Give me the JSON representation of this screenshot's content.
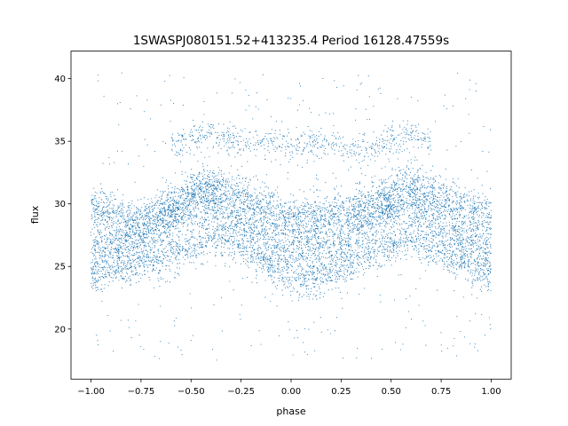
{
  "chart_data": {
    "type": "scatter",
    "title": "1SWASPJ080151.52+413235.4 Period 16128.47559s",
    "xlabel": "phase",
    "ylabel": "flux",
    "xlim": [
      -1.1,
      1.1
    ],
    "ylim": [
      16.0,
      42.2
    ],
    "xticks": [
      -1.0,
      -0.75,
      -0.5,
      -0.25,
      0.0,
      0.25,
      0.5,
      0.75,
      1.0
    ],
    "xtick_labels": [
      "−1.00",
      "−0.75",
      "−0.50",
      "−0.25",
      "0.00",
      "0.25",
      "0.50",
      "0.75",
      "1.00"
    ],
    "yticks": [
      20,
      25,
      30,
      35,
      40
    ],
    "ytick_labels": [
      "20",
      "25",
      "30",
      "35",
      "40"
    ],
    "grid": false,
    "marker_color": "#1f77b4",
    "series": [
      {
        "description_bands": "folded light curve, repeated over two cycles",
        "bands": [
          {
            "phase": [
              -1.0,
              -0.75,
              -0.5,
              -0.4,
              -0.25,
              0.0,
              0.25,
              0.5,
              0.6,
              0.75,
              1.0
            ],
            "flux": [
              29.5,
              28.5,
              30.8,
              31.5,
              30.5,
              28.8,
              29.0,
              30.8,
              31.5,
              30.3,
              29.0
            ]
          },
          {
            "phase": [
              -1.0,
              -0.75,
              -0.5,
              -0.4,
              -0.25,
              0.0,
              0.25,
              0.5,
              0.6,
              0.75,
              1.0
            ],
            "flux": [
              26.5,
              27.2,
              29.5,
              30.0,
              28.5,
              26.3,
              26.8,
              29.5,
              30.0,
              28.0,
              26.5
            ]
          },
          {
            "phase": [
              -1.0,
              -0.75,
              -0.5,
              -0.4,
              -0.25,
              0.0,
              0.1,
              0.25,
              0.5,
              0.6,
              0.75,
              1.0
            ],
            "flux": [
              24.5,
              25.3,
              26.5,
              27.5,
              26.5,
              24.2,
              24.0,
              25.0,
              26.8,
              27.5,
              26.0,
              24.5
            ]
          },
          {
            "phase": [
              -0.6,
              -0.5,
              -0.4,
              -0.3,
              0.4,
              0.5,
              0.6,
              0.7
            ],
            "flux": [
              34.5,
              35.2,
              35.5,
              35.0,
              34.5,
              35.2,
              35.6,
              35.0
            ]
          }
        ]
      }
    ]
  }
}
